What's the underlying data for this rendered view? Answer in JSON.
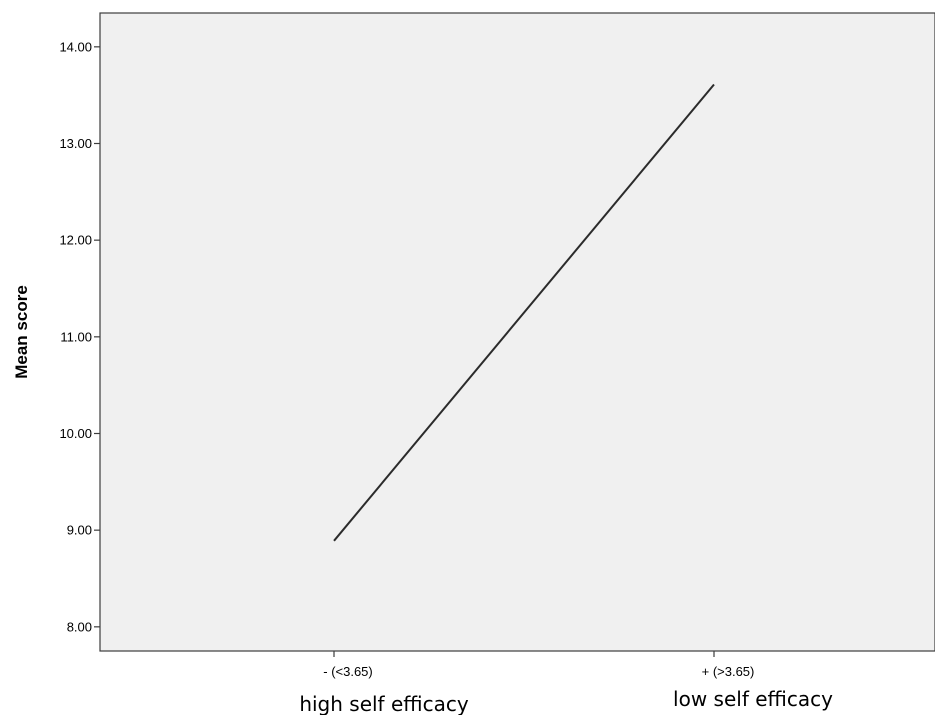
{
  "chart_data": {
    "type": "line",
    "title": "",
    "xlabel": "",
    "ylabel": "Mean score",
    "categories": [
      "- (<3.65)",
      "+ (>3.65)"
    ],
    "category_captions": [
      "high self efficacy",
      "low self efficacy"
    ],
    "series": [
      {
        "values": [
          8.89,
          13.61
        ]
      }
    ],
    "ylim": [
      7.75,
      14.35
    ],
    "yticks": [
      8.0,
      9.0,
      10.0,
      11.0,
      12.0,
      13.0,
      14.0
    ],
    "ytick_labels": [
      "8.00",
      "9.00",
      "10.00",
      "11.00",
      "12.00",
      "13.00",
      "14.00"
    ],
    "grid": false,
    "legend": "none",
    "colors": {
      "plot_background": "#f0f0f0",
      "line": "#2b2b2b",
      "axis": "#3c3c3c"
    }
  }
}
